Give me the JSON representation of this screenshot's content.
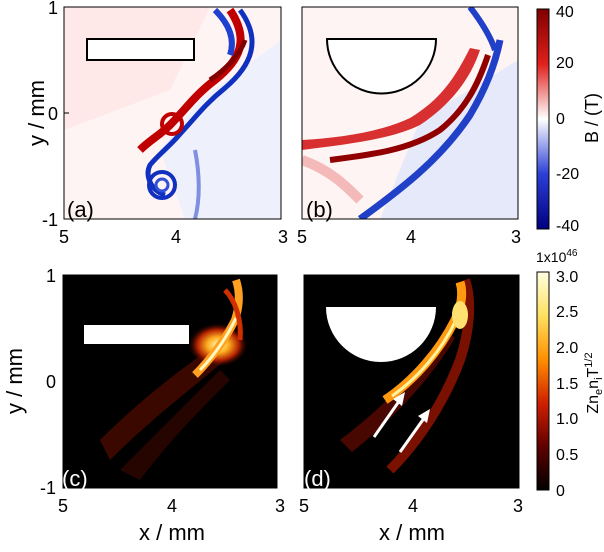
{
  "panels": [
    {
      "id": "a",
      "label": "(a)",
      "shape": "rectangle"
    },
    {
      "id": "b",
      "label": "(b)",
      "shape": "semicircle"
    },
    {
      "id": "c",
      "label": "(c)",
      "shape": "rectangle"
    },
    {
      "id": "d",
      "label": "(d)",
      "shape": "semicircle"
    }
  ],
  "axes": {
    "y_label": "y / mm",
    "x_label": "x / mm",
    "y_ticks": [
      "1",
      "0",
      "-1"
    ],
    "x_ticks": [
      "5",
      "4",
      "3"
    ]
  },
  "colorbar_top": {
    "label": "B / (T)",
    "ticks": [
      "40",
      "20",
      "0",
      "-20",
      "-40"
    ],
    "colors": [
      "#7f0000",
      "#d7191c",
      "#ffffff",
      "#2c3fd6",
      "#00007f"
    ]
  },
  "colorbar_bottom": {
    "multiplier": "1x10",
    "multiplier_exp": "46",
    "label_main": "Zn",
    "label_sub_e": "e",
    "label_n": "n",
    "label_sub_i": "i",
    "label_T": "T",
    "label_exp": "1/2",
    "ticks": [
      "3.0",
      "2.5",
      "2.0",
      "1.5",
      "1.0",
      "0.5",
      "0"
    ],
    "colors": [
      "#ffffe0",
      "#fff080",
      "#ffb000",
      "#e04000",
      "#900000",
      "#400000",
      "#000000"
    ]
  }
}
